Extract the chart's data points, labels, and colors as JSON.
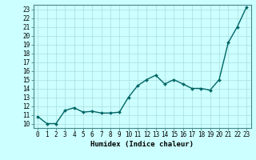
{
  "x": [
    0,
    1,
    2,
    3,
    4,
    5,
    6,
    7,
    8,
    9,
    10,
    11,
    12,
    13,
    14,
    15,
    16,
    17,
    18,
    19,
    20,
    21,
    22,
    23
  ],
  "y": [
    10.8,
    10.0,
    10.0,
    11.5,
    11.8,
    11.3,
    11.4,
    11.2,
    11.2,
    11.3,
    13.0,
    14.3,
    15.0,
    15.5,
    14.5,
    15.0,
    14.5,
    14.0,
    14.0,
    13.8,
    15.0,
    19.2,
    21.0,
    23.2
  ],
  "line_color": "#006666",
  "marker": "D",
  "markersize": 2.0,
  "bg_color": "#ccffff",
  "grid_color": "#aadddd",
  "xlabel": "Humidex (Indice chaleur)",
  "ylim": [
    9.5,
    23.5
  ],
  "xlim": [
    -0.5,
    23.5
  ],
  "yticks": [
    10,
    11,
    12,
    13,
    14,
    15,
    16,
    17,
    18,
    19,
    20,
    21,
    22,
    23
  ],
  "xticks": [
    0,
    1,
    2,
    3,
    4,
    5,
    6,
    7,
    8,
    9,
    10,
    11,
    12,
    13,
    14,
    15,
    16,
    17,
    18,
    19,
    20,
    21,
    22,
    23
  ],
  "axis_fontsize": 6.5,
  "tick_fontsize": 5.5,
  "linewidth": 1.0,
  "spine_color": "#448888"
}
